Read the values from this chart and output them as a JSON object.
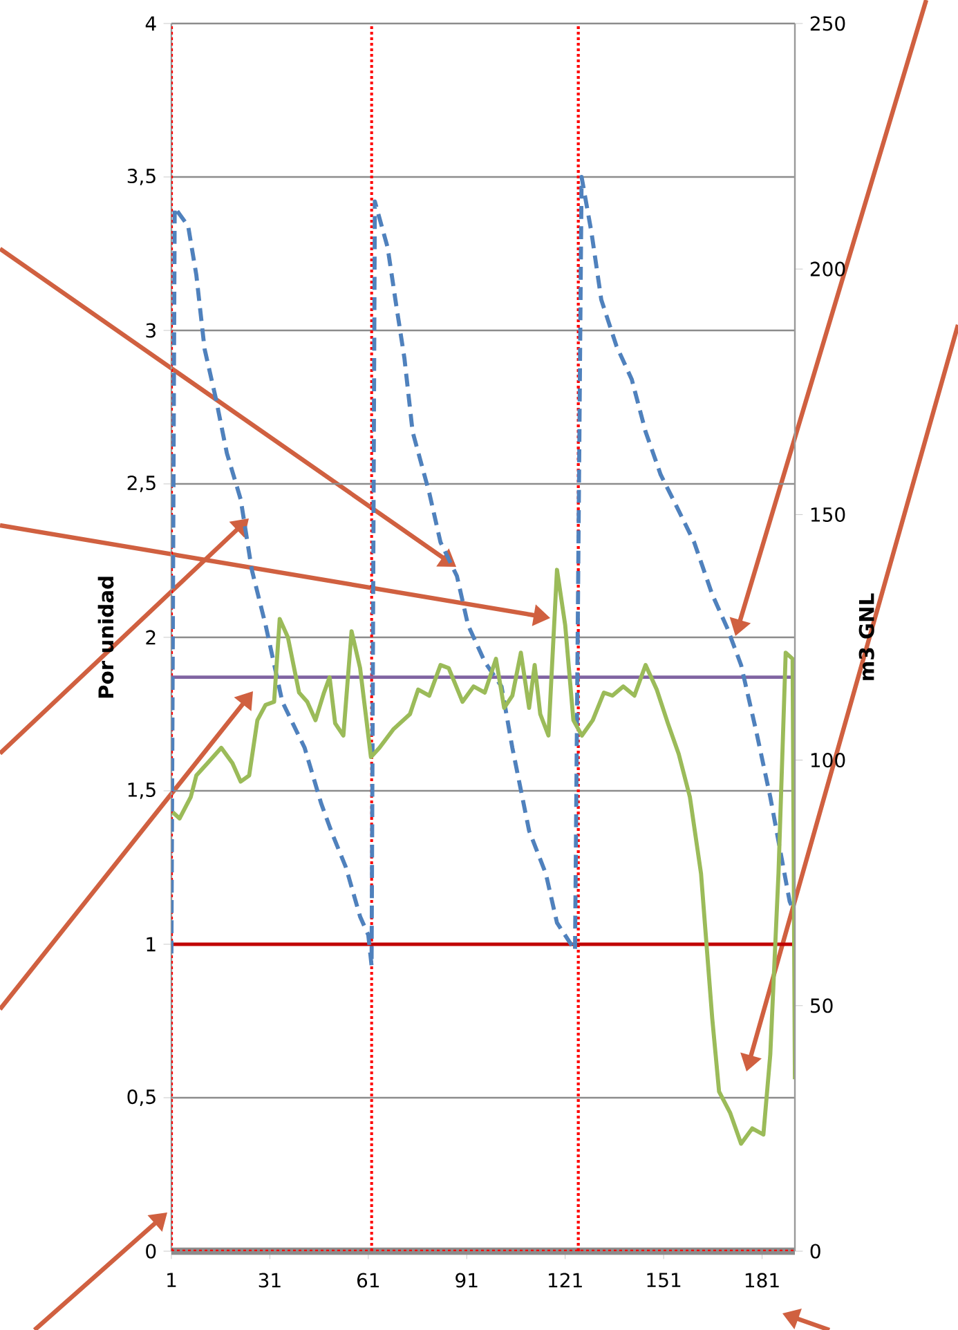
{
  "chart_data": {
    "type": "line",
    "ylabel": "Por unidad",
    "y2label": "m3 GNL",
    "xlim": [
      1,
      191
    ],
    "xticks": [
      1,
      31,
      61,
      91,
      121,
      151,
      181
    ],
    "ylim": [
      0,
      4
    ],
    "yticks": [
      0,
      {
        "value": 0.5,
        "label": "0,5"
      },
      1,
      {
        "value": 1.5,
        "label": "1,5"
      },
      2,
      {
        "value": 2.5,
        "label": "2,5"
      },
      3,
      {
        "value": 3.5,
        "label": "3,5"
      },
      4
    ],
    "y2lim": [
      0,
      250
    ],
    "y2ticks": [
      0,
      50,
      100,
      150,
      200,
      250
    ],
    "grid": "y",
    "series": [
      {
        "color": "#4f81bd",
        "line_style": "dashed",
        "x": [
          1,
          2,
          6.1,
          8.6,
          11.1,
          14.5,
          17.9,
          22.1,
          25.5,
          29.7,
          34.8,
          41.6,
          46.6,
          50.0,
          54.2,
          58.5,
          61,
          62,
          63,
          66.9,
          69.4,
          72.0,
          74.5,
          79.6,
          83.0,
          88.0,
          91.4,
          96.5,
          101.6,
          104.9,
          110.0,
          115.1,
          118.5,
          124,
          126,
          129.0,
          132.0,
          136.6,
          141.3,
          145.5,
          150.1,
          154.8,
          160.3,
          165.8,
          170.4,
          174.6,
          179.3,
          183.5,
          189.4,
          191
        ],
        "values": [
          0.97,
          3.4,
          3.34,
          3.18,
          2.94,
          2.78,
          2.6,
          2.45,
          2.22,
          2.04,
          1.79,
          1.64,
          1.46,
          1.36,
          1.25,
          1.09,
          1.03,
          0.93,
          3.42,
          3.27,
          3.09,
          2.91,
          2.67,
          2.47,
          2.31,
          2.2,
          2.04,
          1.92,
          1.84,
          1.64,
          1.37,
          1.23,
          1.07,
          0.98,
          3.5,
          3.32,
          3.1,
          2.95,
          2.84,
          2.67,
          2.53,
          2.43,
          2.31,
          2.14,
          2.03,
          1.91,
          1.69,
          1.48,
          1.14,
          1.1
        ]
      },
      {
        "color": "#9bbb59",
        "line_style": "solid",
        "x": [
          1.4,
          3.5,
          6.9,
          8.6,
          12.0,
          16.2,
          19.6,
          22.1,
          24.7,
          27.2,
          29.7,
          32.3,
          34.0,
          36.5,
          39.9,
          42.4,
          44.9,
          47.5,
          49.2,
          50.9,
          53.4,
          55.9,
          58.5,
          61.8,
          64.4,
          68.6,
          73.7,
          76.2,
          79.6,
          83.0,
          85.5,
          89.7,
          93.1,
          96.5,
          99.9,
          102.4,
          104.9,
          107.5,
          110.0,
          111.7,
          113.4,
          115.9,
          118.5,
          121.0,
          123.5,
          126.1,
          129.4,
          132.8,
          135.4,
          138.7,
          142.1,
          145.5,
          148.9,
          152.3,
          155.6,
          159.0,
          162.4,
          165.8,
          167.9,
          171.3,
          174.6,
          178.0,
          181.4,
          183.5,
          186.0,
          188.2,
          190.3,
          191
        ],
        "values": [
          1.43,
          1.41,
          1.48,
          1.55,
          1.59,
          1.64,
          1.59,
          1.53,
          1.55,
          1.73,
          1.78,
          1.79,
          2.06,
          2.0,
          1.82,
          1.79,
          1.73,
          1.82,
          1.87,
          1.72,
          1.68,
          2.02,
          1.9,
          1.61,
          1.64,
          1.7,
          1.75,
          1.83,
          1.81,
          1.91,
          1.9,
          1.79,
          1.84,
          1.82,
          1.93,
          1.77,
          1.81,
          1.95,
          1.77,
          1.91,
          1.75,
          1.68,
          2.22,
          2.04,
          1.73,
          1.68,
          1.73,
          1.82,
          1.81,
          1.84,
          1.81,
          1.91,
          1.83,
          1.72,
          1.62,
          1.48,
          1.23,
          0.76,
          0.52,
          0.45,
          0.35,
          0.4,
          0.38,
          0.64,
          1.23,
          1.95,
          1.93,
          0.56
        ]
      }
    ],
    "ref_lines": [
      {
        "axis": "x",
        "value": 1,
        "color": "#ff0000",
        "line_style": "dotted"
      },
      {
        "axis": "x",
        "value": 62,
        "color": "#ff0000",
        "line_style": "dotted"
      },
      {
        "axis": "x",
        "value": 125,
        "color": "#ff0000",
        "line_style": "dotted"
      },
      {
        "axis": "y",
        "value": 0,
        "color": "#ff0000",
        "line_style": "dotted"
      },
      {
        "axis": "y",
        "value": 1,
        "color": "#c00000",
        "line_style": "solid"
      },
      {
        "axis": "y",
        "value": 1.87,
        "color": "#8064a2",
        "line_style": "solid"
      }
    ]
  }
}
